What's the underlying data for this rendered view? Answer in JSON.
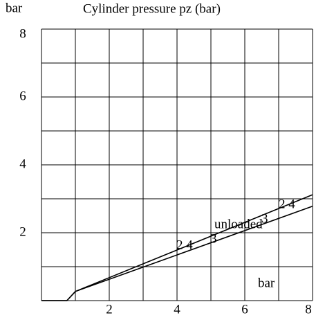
{
  "chart_data": {
    "type": "line",
    "title": "Cylinder pressure pz (bar)",
    "y_label": "bar",
    "x_label": "bar",
    "annotations": [
      "2 4",
      "3",
      "unloaded",
      "3",
      "2 4"
    ],
    "x": [
      0,
      0.75,
      1,
      8
    ],
    "series": [
      {
        "color": "#000000",
        "values": [
          0,
          0,
          0.27,
          3.12
        ]
      },
      {
        "color": "#000000",
        "values": [
          0,
          0,
          0.27,
          2.78
        ]
      }
    ],
    "xlim": [
      0,
      8
    ],
    "ylim": [
      0,
      8
    ],
    "xticks": [
      2,
      4,
      6,
      8
    ],
    "yticks": [
      2,
      4,
      6,
      8
    ],
    "xgridlines": [
      0,
      1,
      2,
      3,
      4,
      5,
      6,
      7,
      8
    ],
    "ygridlines": [
      0,
      1,
      2,
      3,
      4,
      5,
      6,
      7,
      8
    ],
    "grid": true
  }
}
